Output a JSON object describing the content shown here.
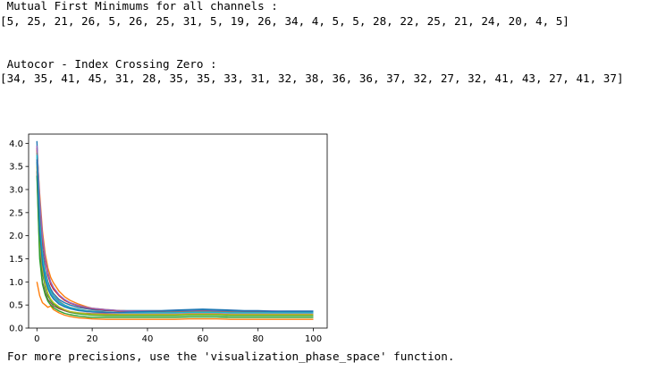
{
  "output": {
    "mutual_heading": " Mutual First Minimums for all channels :",
    "mutual_values": "[5, 25, 21, 26, 5, 26, 25, 31, 5, 19, 26, 34, 4, 5, 5, 28, 22, 25, 21, 24, 20, 4, 5]",
    "autocor_heading": " Autocor - Index Crossing Zero :",
    "autocor_values": "[34, 35, 41, 45, 31, 28, 35, 35, 33, 31, 32, 38, 36, 36, 37, 32, 27, 32, 41, 43, 27, 41, 37]",
    "footer_note": "For more precisions, use the 'visualization_phase_space' function."
  },
  "chart_data": {
    "type": "line",
    "title": "",
    "xlabel": "",
    "ylabel": "",
    "xlim": [
      -3,
      105
    ],
    "ylim": [
      0,
      4.2
    ],
    "xticks": [
      0,
      20,
      40,
      60,
      80,
      100
    ],
    "yticks": [
      0.0,
      0.5,
      1.0,
      1.5,
      2.0,
      2.5,
      3.0,
      3.5,
      4.0
    ],
    "grid": false,
    "legend": "none",
    "x": [
      0,
      1,
      2,
      3,
      4,
      5,
      6,
      8,
      10,
      12,
      15,
      18,
      20,
      25,
      30,
      35,
      40,
      45,
      50,
      55,
      60,
      65,
      70,
      75,
      80,
      85,
      90,
      95,
      100
    ],
    "series": [
      {
        "color": "#1f77b4",
        "values": [
          4.05,
          2.6,
          1.7,
          1.25,
          1.0,
          0.85,
          0.75,
          0.62,
          0.55,
          0.5,
          0.45,
          0.42,
          0.4,
          0.38,
          0.38,
          0.38,
          0.38,
          0.38,
          0.39,
          0.4,
          0.41,
          0.4,
          0.39,
          0.38,
          0.38,
          0.37,
          0.37,
          0.37,
          0.37
        ]
      },
      {
        "color": "#ff7f0e",
        "values": [
          3.85,
          2.9,
          2.1,
          1.6,
          1.3,
          1.1,
          0.98,
          0.8,
          0.68,
          0.6,
          0.52,
          0.46,
          0.43,
          0.4,
          0.38,
          0.37,
          0.37,
          0.37,
          0.37,
          0.37,
          0.38,
          0.38,
          0.37,
          0.36,
          0.36,
          0.35,
          0.35,
          0.35,
          0.35
        ]
      },
      {
        "color": "#2ca02c",
        "values": [
          3.6,
          1.8,
          1.2,
          0.9,
          0.7,
          0.6,
          0.52,
          0.44,
          0.38,
          0.34,
          0.31,
          0.29,
          0.28,
          0.27,
          0.27,
          0.27,
          0.27,
          0.27,
          0.27,
          0.28,
          0.28,
          0.28,
          0.27,
          0.27,
          0.27,
          0.27,
          0.27,
          0.27,
          0.27
        ]
      },
      {
        "color": "#d62728",
        "values": [
          3.9,
          2.7,
          1.9,
          1.45,
          1.15,
          0.95,
          0.84,
          0.7,
          0.6,
          0.54,
          0.48,
          0.44,
          0.42,
          0.39,
          0.37,
          0.36,
          0.36,
          0.36,
          0.36,
          0.37,
          0.37,
          0.37,
          0.36,
          0.36,
          0.36,
          0.35,
          0.35,
          0.35,
          0.35
        ]
      },
      {
        "color": "#9467bd",
        "values": [
          3.95,
          2.8,
          2.0,
          1.5,
          1.2,
          1.0,
          0.88,
          0.72,
          0.62,
          0.55,
          0.49,
          0.45,
          0.43,
          0.4,
          0.38,
          0.37,
          0.37,
          0.37,
          0.38,
          0.38,
          0.39,
          0.38,
          0.38,
          0.37,
          0.37,
          0.37,
          0.36,
          0.36,
          0.36
        ]
      },
      {
        "color": "#8c564b",
        "values": [
          3.4,
          1.6,
          1.0,
          0.78,
          0.62,
          0.55,
          0.48,
          0.42,
          0.38,
          0.35,
          0.33,
          0.32,
          0.31,
          0.31,
          0.31,
          0.31,
          0.31,
          0.31,
          0.31,
          0.32,
          0.32,
          0.32,
          0.31,
          0.31,
          0.31,
          0.31,
          0.31,
          0.31,
          0.31
        ]
      },
      {
        "color": "#e377c2",
        "values": [
          3.7,
          2.2,
          1.5,
          1.1,
          0.9,
          0.76,
          0.66,
          0.55,
          0.48,
          0.43,
          0.39,
          0.36,
          0.35,
          0.33,
          0.32,
          0.32,
          0.32,
          0.32,
          0.32,
          0.33,
          0.33,
          0.33,
          0.32,
          0.32,
          0.32,
          0.32,
          0.32,
          0.32,
          0.32
        ]
      },
      {
        "color": "#7f7f7f",
        "values": [
          3.8,
          2.4,
          1.6,
          1.2,
          0.95,
          0.8,
          0.7,
          0.58,
          0.5,
          0.45,
          0.41,
          0.38,
          0.37,
          0.35,
          0.34,
          0.34,
          0.34,
          0.34,
          0.35,
          0.35,
          0.36,
          0.35,
          0.35,
          0.34,
          0.34,
          0.34,
          0.34,
          0.34,
          0.34
        ]
      },
      {
        "color": "#bcbd22",
        "values": [
          3.5,
          1.9,
          1.3,
          0.95,
          0.75,
          0.63,
          0.55,
          0.46,
          0.4,
          0.36,
          0.33,
          0.31,
          0.3,
          0.29,
          0.29,
          0.29,
          0.29,
          0.29,
          0.29,
          0.3,
          0.3,
          0.3,
          0.29,
          0.29,
          0.29,
          0.29,
          0.29,
          0.29,
          0.29
        ]
      },
      {
        "color": "#17becf",
        "values": [
          3.75,
          2.3,
          1.55,
          1.15,
          0.92,
          0.78,
          0.68,
          0.56,
          0.49,
          0.44,
          0.4,
          0.37,
          0.36,
          0.34,
          0.33,
          0.33,
          0.33,
          0.33,
          0.33,
          0.34,
          0.34,
          0.34,
          0.33,
          0.33,
          0.33,
          0.33,
          0.33,
          0.33,
          0.33
        ]
      },
      {
        "color": "#ff7f0e",
        "values": [
          1.0,
          0.7,
          0.55,
          0.5,
          0.45,
          0.48,
          0.4,
          0.33,
          0.28,
          0.25,
          0.22,
          0.21,
          0.2,
          0.19,
          0.19,
          0.19,
          0.19,
          0.19,
          0.19,
          0.2,
          0.2,
          0.2,
          0.19,
          0.19,
          0.19,
          0.19,
          0.19,
          0.19,
          0.19
        ]
      },
      {
        "color": "#2ca02c",
        "values": [
          3.3,
          1.5,
          0.95,
          0.72,
          0.58,
          0.5,
          0.44,
          0.37,
          0.32,
          0.29,
          0.26,
          0.24,
          0.23,
          0.23,
          0.23,
          0.23,
          0.23,
          0.23,
          0.23,
          0.24,
          0.24,
          0.24,
          0.23,
          0.23,
          0.23,
          0.23,
          0.23,
          0.23,
          0.23
        ]
      },
      {
        "color": "#1f77b4",
        "values": [
          3.65,
          2.1,
          1.4,
          1.05,
          0.85,
          0.72,
          0.63,
          0.52,
          0.46,
          0.42,
          0.38,
          0.36,
          0.35,
          0.34,
          0.34,
          0.35,
          0.36,
          0.37,
          0.38,
          0.39,
          0.4,
          0.39,
          0.38,
          0.37,
          0.37,
          0.36,
          0.36,
          0.36,
          0.36
        ]
      }
    ]
  }
}
